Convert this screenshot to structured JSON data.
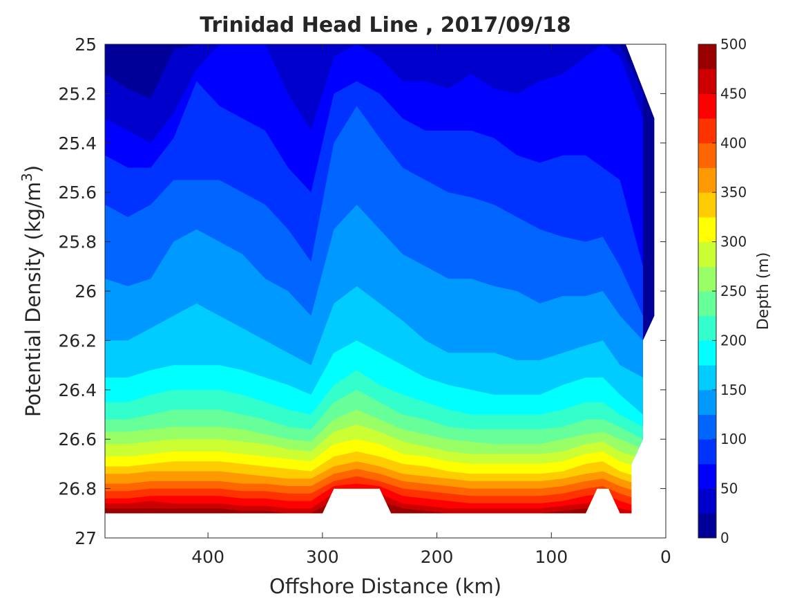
{
  "chart_data": {
    "type": "contourf",
    "title": "Trinidad Head Line , 2017/09/18",
    "xlabel": "Offshore Distance (km)",
    "ylabel": "Potential Density (kg/m",
    "ylabel_sup": "3",
    "ylabel_end": ")",
    "x_reversed": true,
    "xlim": [
      490,
      0
    ],
    "ylim": [
      25,
      27
    ],
    "y_reversed": true,
    "xticks": [
      {
        "value": 400,
        "label": "400"
      },
      {
        "value": 300,
        "label": "300"
      },
      {
        "value": 200,
        "label": "200"
      },
      {
        "value": 100,
        "label": "100"
      },
      {
        "value": 0,
        "label": "0"
      }
    ],
    "yticks": [
      {
        "value": 25,
        "label": "25"
      },
      {
        "value": 25.2,
        "label": "25.2"
      },
      {
        "value": 25.4,
        "label": "25.4"
      },
      {
        "value": 25.6,
        "label": "25.6"
      },
      {
        "value": 25.8,
        "label": "25.8"
      },
      {
        "value": 26,
        "label": "26"
      },
      {
        "value": 26.2,
        "label": "26.2"
      },
      {
        "value": 26.4,
        "label": "26.4"
      },
      {
        "value": 26.6,
        "label": "26.6"
      },
      {
        "value": 26.8,
        "label": "26.8"
      },
      {
        "value": 27,
        "label": "27"
      }
    ],
    "colorbar": {
      "label": "Depth (m)",
      "min": 0,
      "max": 500,
      "step": 25,
      "ticks": [
        {
          "value": 0,
          "label": "0"
        },
        {
          "value": 50,
          "label": "50"
        },
        {
          "value": 100,
          "label": "100"
        },
        {
          "value": 150,
          "label": "150"
        },
        {
          "value": 200,
          "label": "200"
        },
        {
          "value": 250,
          "label": "250"
        },
        {
          "value": 300,
          "label": "300"
        },
        {
          "value": 350,
          "label": "350"
        },
        {
          "value": 400,
          "label": "400"
        },
        {
          "value": 450,
          "label": "450"
        },
        {
          "value": 500,
          "label": "500"
        }
      ],
      "colormap": "jet"
    },
    "station_distances_km": [
      490,
      470,
      450,
      430,
      410,
      390,
      370,
      350,
      330,
      310,
      290,
      270,
      250,
      230,
      210,
      190,
      170,
      150,
      130,
      110,
      90,
      70,
      55,
      40,
      20
    ],
    "depth_isopycnals": [
      {
        "depth": 25,
        "density": [
          25.12,
          25.18,
          25.22,
          25.02,
          25.0,
          25.0,
          25.0,
          25.0,
          25.0,
          25.0,
          25.0,
          25.0,
          25.0,
          25.0,
          25.0,
          25.0,
          25.0,
          25.0,
          25.0,
          25.0,
          25.0,
          25.0,
          25.0,
          25.0,
          25.2
        ]
      },
      {
        "depth": 50,
        "density": [
          25.3,
          25.35,
          25.4,
          25.28,
          25.1,
          25.0,
          25.0,
          25.0,
          25.2,
          25.35,
          25.05,
          25.0,
          25.05,
          25.15,
          25.15,
          25.18,
          25.12,
          25.18,
          25.2,
          25.15,
          25.12,
          25.05,
          25.0,
          25.05,
          25.3
        ]
      },
      {
        "depth": 75,
        "density": [
          25.45,
          25.5,
          25.5,
          25.38,
          25.15,
          25.25,
          25.3,
          25.35,
          25.5,
          25.6,
          25.2,
          25.15,
          25.2,
          25.3,
          25.35,
          25.35,
          25.35,
          25.38,
          25.45,
          25.48,
          25.45,
          25.45,
          25.5,
          25.55,
          25.9
        ]
      },
      {
        "depth": 100,
        "density": [
          25.65,
          25.7,
          25.65,
          25.55,
          25.55,
          25.55,
          25.6,
          25.65,
          25.75,
          25.88,
          25.4,
          25.25,
          25.38,
          25.5,
          25.55,
          25.6,
          25.62,
          25.65,
          25.7,
          25.75,
          25.78,
          25.8,
          25.78,
          25.9,
          26.1
        ]
      },
      {
        "depth": 125,
        "density": [
          25.95,
          25.98,
          25.95,
          25.8,
          25.75,
          25.8,
          25.85,
          25.95,
          26.0,
          26.1,
          25.75,
          25.65,
          25.75,
          25.85,
          25.9,
          25.95,
          25.95,
          25.98,
          26.0,
          26.05,
          26.02,
          26.02,
          26.0,
          26.1,
          26.2
        ]
      },
      {
        "depth": 150,
        "density": [
          26.2,
          26.2,
          26.15,
          26.1,
          26.05,
          26.1,
          26.15,
          26.2,
          26.25,
          26.3,
          26.05,
          25.98,
          26.05,
          26.12,
          26.2,
          26.25,
          26.25,
          26.25,
          26.28,
          26.28,
          26.25,
          26.22,
          26.2,
          26.3,
          26.35
        ]
      },
      {
        "depth": 175,
        "density": [
          26.35,
          26.35,
          26.32,
          26.3,
          26.3,
          26.3,
          26.32,
          26.35,
          26.38,
          26.42,
          26.25,
          26.2,
          26.25,
          26.3,
          26.35,
          26.38,
          26.4,
          26.42,
          26.42,
          26.42,
          26.38,
          26.35,
          26.35,
          26.42,
          26.5
        ]
      },
      {
        "depth": 200,
        "density": [
          26.45,
          26.45,
          26.42,
          26.4,
          26.4,
          26.4,
          26.42,
          26.45,
          26.48,
          26.5,
          26.38,
          26.32,
          26.38,
          26.42,
          26.45,
          26.48,
          26.5,
          26.5,
          26.5,
          26.5,
          26.48,
          26.45,
          26.45,
          26.5,
          26.55
        ]
      },
      {
        "depth": 225,
        "density": [
          26.52,
          26.52,
          26.5,
          26.48,
          26.48,
          26.48,
          26.5,
          26.52,
          26.55,
          26.56,
          26.45,
          26.4,
          26.45,
          26.5,
          26.52,
          26.55,
          26.56,
          26.56,
          26.56,
          26.56,
          26.55,
          26.52,
          26.52,
          26.55,
          26.6
        ]
      },
      {
        "depth": 250,
        "density": [
          26.57,
          26.57,
          26.56,
          26.55,
          26.55,
          26.55,
          26.56,
          26.58,
          26.6,
          26.61,
          26.52,
          26.48,
          26.52,
          26.56,
          26.58,
          26.6,
          26.61,
          26.62,
          26.62,
          26.62,
          26.6,
          26.58,
          26.57,
          26.6,
          26.64
        ]
      },
      {
        "depth": 275,
        "density": [
          26.62,
          26.62,
          26.61,
          26.6,
          26.6,
          26.6,
          26.61,
          26.62,
          26.64,
          26.65,
          26.57,
          26.54,
          26.57,
          26.61,
          26.63,
          26.65,
          26.66,
          26.66,
          26.66,
          26.66,
          26.65,
          26.62,
          26.61,
          26.65,
          26.68
        ]
      },
      {
        "depth": 300,
        "density": [
          26.67,
          26.67,
          26.66,
          26.65,
          26.65,
          26.65,
          26.66,
          26.67,
          26.68,
          26.69,
          26.62,
          26.6,
          26.62,
          26.66,
          26.67,
          26.69,
          26.7,
          26.7,
          26.7,
          26.7,
          26.69,
          26.66,
          26.65,
          26.69,
          26.72
        ]
      },
      {
        "depth": 325,
        "density": [
          26.71,
          26.71,
          26.7,
          26.69,
          26.69,
          26.69,
          26.7,
          26.71,
          26.72,
          26.73,
          26.67,
          26.65,
          26.67,
          26.7,
          26.71,
          26.73,
          26.74,
          26.74,
          26.74,
          26.74,
          26.73,
          26.7,
          26.69,
          26.73,
          26.76
        ]
      },
      {
        "depth": 350,
        "density": [
          26.74,
          26.74,
          26.73,
          26.73,
          26.73,
          26.73,
          26.74,
          26.75,
          26.76,
          26.76,
          26.71,
          26.69,
          26.71,
          26.74,
          26.75,
          26.76,
          26.77,
          26.77,
          26.77,
          26.77,
          26.76,
          26.74,
          26.73,
          26.76,
          26.79
        ]
      },
      {
        "depth": 375,
        "density": [
          26.78,
          26.78,
          26.77,
          26.77,
          26.77,
          26.77,
          26.78,
          26.78,
          26.79,
          26.79,
          26.74,
          26.72,
          26.74,
          26.77,
          26.78,
          26.79,
          26.8,
          26.8,
          26.8,
          26.8,
          26.79,
          26.77,
          26.76,
          26.79,
          26.82
        ]
      },
      {
        "depth": 400,
        "density": [
          26.81,
          26.81,
          26.8,
          26.8,
          26.8,
          26.8,
          26.81,
          26.81,
          26.82,
          26.82,
          26.77,
          26.75,
          26.77,
          26.8,
          26.81,
          26.82,
          26.83,
          26.83,
          26.83,
          26.83,
          26.82,
          26.8,
          26.79,
          26.82,
          26.85
        ]
      },
      {
        "depth": 425,
        "density": [
          26.84,
          26.84,
          26.83,
          26.83,
          26.83,
          26.83,
          26.84,
          26.84,
          26.85,
          26.85,
          26.79,
          26.78,
          26.79,
          26.83,
          26.84,
          26.85,
          26.86,
          26.86,
          26.86,
          26.86,
          26.85,
          26.83,
          26.82,
          26.85,
          26.88
        ]
      },
      {
        "depth": 450,
        "density": [
          26.86,
          26.86,
          26.85,
          26.86,
          26.86,
          26.86,
          26.87,
          26.87,
          26.88,
          26.88,
          26.82,
          26.8,
          26.82,
          26.86,
          26.87,
          26.88,
          26.88,
          26.88,
          26.88,
          26.88,
          26.87,
          26.86,
          26.85,
          26.88,
          26.9
        ]
      },
      {
        "depth": 475,
        "density": [
          26.88,
          26.88,
          26.88,
          26.88,
          26.88,
          26.88,
          26.89,
          26.89,
          26.9,
          26.9,
          26.85,
          26.83,
          26.85,
          26.88,
          26.89,
          26.9,
          26.9,
          26.9,
          26.9,
          26.9,
          26.89,
          26.88,
          26.88,
          26.9,
          26.92
        ]
      }
    ],
    "data_coverage_outline": [
      {
        "x": 490,
        "y": 25
      },
      {
        "x": 35,
        "y": 25
      },
      {
        "x": 10,
        "y": 25.3
      },
      {
        "x": 10,
        "y": 26.1
      },
      {
        "x": 20,
        "y": 26.2
      },
      {
        "x": 20,
        "y": 26.6
      },
      {
        "x": 30,
        "y": 26.7
      },
      {
        "x": 30,
        "y": 26.9
      },
      {
        "x": 40,
        "y": 26.9
      },
      {
        "x": 50,
        "y": 26.8
      },
      {
        "x": 60,
        "y": 26.8
      },
      {
        "x": 70,
        "y": 26.9
      },
      {
        "x": 240,
        "y": 26.9
      },
      {
        "x": 250,
        "y": 26.8
      },
      {
        "x": 290,
        "y": 26.8
      },
      {
        "x": 300,
        "y": 26.9
      },
      {
        "x": 490,
        "y": 26.9
      }
    ]
  }
}
